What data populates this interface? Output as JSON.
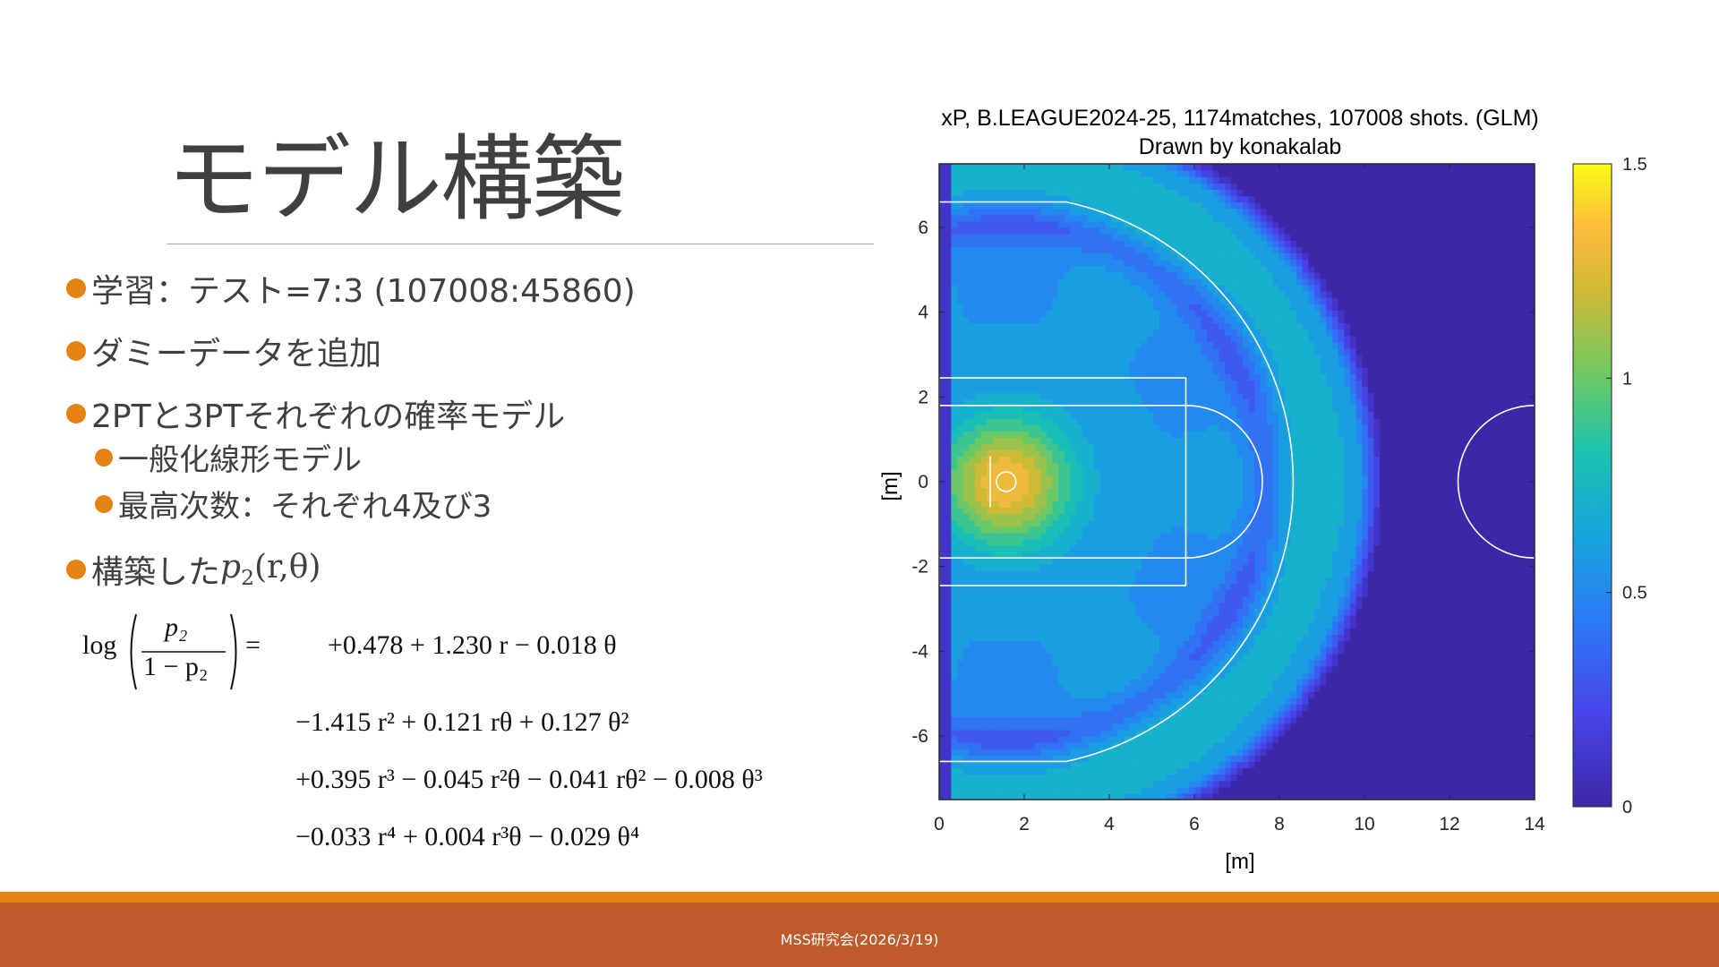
{
  "slide": {
    "title": "モデル構築",
    "bullets": [
      {
        "text": "学習：テスト=7:3 (107008:45860)"
      },
      {
        "text": "ダミーデータを追加"
      },
      {
        "text": "2PTと3PTそれぞれの確率モデル"
      },
      {
        "text": "一般化線形モデル"
      },
      {
        "text": "最高次数：それぞれ4及び3"
      },
      {
        "text": "構築した"
      }
    ],
    "bullet_math": {
      "p": "p",
      "sub": "2",
      "args": "(r,θ)"
    },
    "equation": {
      "lhs_log": "log",
      "lhs_num": "p₂",
      "lhs_den": "1 − p₂",
      "lhs_eq": "=",
      "line1": "+0.478 + 1.230 r − 0.018 θ",
      "line2": "−1.415 r² + 0.121 rθ + 0.127 θ²",
      "line3": "+0.395 r³ − 0.045 r²θ − 0.041 rθ² − 0.008 θ³",
      "line4": "−0.033 r⁴ + 0.004 r³θ − 0.029 θ⁴"
    }
  },
  "footer": {
    "text": "MSS研究会(2026/3/19)"
  },
  "colors": {
    "accent": "#e48312",
    "footer": "#bf5a2a",
    "text": "#404040"
  },
  "chart_data": {
    "type": "heatmap",
    "title": "xP, B.LEAGUE2024-25, 1174matches, 107008 shots. (GLM)",
    "subtitle": "Drawn by konakalab",
    "xlabel": "[m]",
    "ylabel": "[m]",
    "xlim": [
      0,
      14
    ],
    "ylim": [
      -7.5,
      7.5
    ],
    "xticks": [
      0,
      2,
      4,
      6,
      8,
      10,
      12,
      14
    ],
    "yticks": [
      6,
      4,
      2,
      0,
      -2,
      -4,
      -6
    ],
    "colorbar": {
      "min": 0,
      "max": 1.5,
      "ticks": [
        1.5,
        1,
        0.5,
        0
      ],
      "colormap": "parula"
    },
    "hot_spot": {
      "x": 1.6,
      "y": 0,
      "value": 1.35
    },
    "three_point_radius": 6.75,
    "court": {
      "basket_x": 1.575,
      "paint_width": 4.9,
      "free_throw_x": 5.8,
      "half_court_x": 14
    }
  }
}
